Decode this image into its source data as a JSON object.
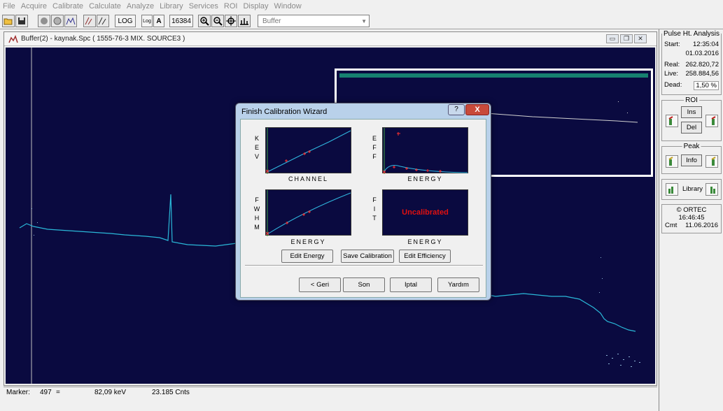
{
  "menu": [
    "File",
    "Acquire",
    "Calibrate",
    "Calculate",
    "Analyze",
    "Library",
    "Services",
    "ROI",
    "Display",
    "Window"
  ],
  "toolbar": {
    "log_label": "LOG",
    "log_icon_label": "Log",
    "a_label": "A",
    "channels": "16384",
    "buffer_select": "Buffer"
  },
  "window": {
    "title": "Buffer(2) - kaynak.Spc ( 1555-76-3 MIX. SOURCE3 )"
  },
  "status": {
    "marker_label": "Marker:",
    "marker_value": "497",
    "equals": "=",
    "energy": "82,09 keV",
    "counts": "23.185  Cnts"
  },
  "sidebar": {
    "pha": {
      "title": "Pulse Ht. Analysis",
      "start_label": "Start:",
      "start_time": "12:35:04",
      "start_date": "01.03.2016",
      "real_label": "Real:",
      "real_value": "262.820,72",
      "live_label": "Live:",
      "live_value": "258.884,56",
      "dead_label": "Dead:",
      "dead_value": "1,50  %"
    },
    "roi": {
      "title": "ROI",
      "ins": "Ins",
      "del": "Del"
    },
    "peak": {
      "title": "Peak",
      "info": "Info"
    },
    "library": {
      "label": "Library"
    },
    "info": {
      "brand": "© ORTEC",
      "time": "16:46:45",
      "cmt_label": "Cmt",
      "cmt_date": "11.06.2016"
    }
  },
  "wizard": {
    "title": "Finish Calibration Wizard",
    "help": "?",
    "close": "X",
    "kev_label": [
      "K",
      "E",
      "V"
    ],
    "eff_label": [
      "E",
      "F",
      "F"
    ],
    "fwhm_label": [
      "F",
      "W",
      "H",
      "M"
    ],
    "fit_label": [
      "F",
      "I",
      "T"
    ],
    "xlabel_1": "CHANNEL",
    "xlabel_2": "ENERGY",
    "xlabel_3": "ENERGY",
    "xlabel_4": "ENERGY",
    "uncalibrated": "Uncalibrated",
    "edit_energy": "Edit Energy",
    "save_calibration": "Save Calibration",
    "edit_efficiency": "Edit Efficiency",
    "back": "< Geri",
    "finish": "Son",
    "cancel": "Iptal",
    "help_btn": "Yardım"
  },
  "colors": {
    "spectrum_bg": "#0a0a40",
    "trace": "#2ab8d8",
    "title_bar": "#b9d1ea",
    "uncalibrated": "#e01010"
  }
}
